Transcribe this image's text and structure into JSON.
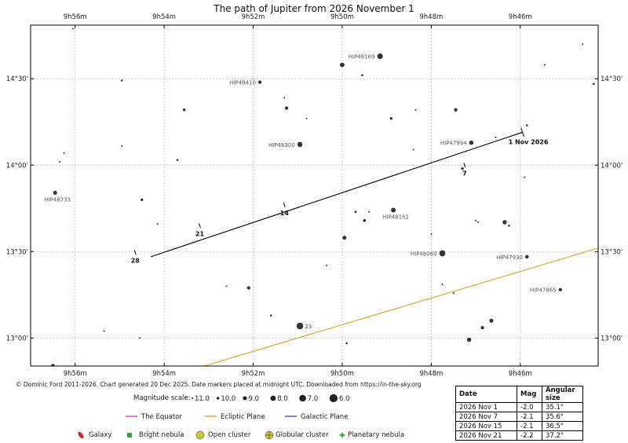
{
  "title": "The path of Jupiter from 2026 November 1",
  "credit": "© Dominic Ford 2011-2026. Chart generated 20 Dec 2025. Date markers placed at midnight UTC. Downloaded from https://in-the-sky.org",
  "chart_data": {
    "type": "scatter",
    "ra_ticks": [
      "9h56m",
      "9h54m",
      "9h52m",
      "9h50m",
      "9h48m",
      "9h46m"
    ],
    "ra_tick_minutes": [
      56,
      54,
      52,
      50,
      48,
      46
    ],
    "dec_ticks": [
      "14°30'",
      "14°00'",
      "13°30'",
      "13°00'"
    ],
    "dec_tick_degrees": [
      14.5,
      14.0,
      13.5,
      13.0
    ],
    "ra_range_minutes": [
      57.0,
      44.25
    ],
    "dec_range_degrees": [
      12.838,
      14.81
    ],
    "grid": true,
    "path": {
      "name": "Jupiter",
      "points": [
        [
          45.95,
          14.19
        ],
        [
          49.55,
          13.97
        ],
        [
          51.6,
          13.72
        ],
        [
          53.0,
          13.55
        ],
        [
          54.3,
          13.47
        ]
      ],
      "markers": [
        {
          "label": "1 Nov 2026",
          "ra": 45.95,
          "dec": 14.19
        },
        {
          "label": "7",
          "ra": 47.25,
          "dec": 14.0
        },
        {
          "label": "14",
          "ra": 51.3,
          "dec": 13.77
        },
        {
          "label": "21",
          "ra": 53.2,
          "dec": 13.65
        },
        {
          "label": "28",
          "ra": 54.65,
          "dec": 13.495
        }
      ]
    },
    "ecliptic": {
      "name": "Ecliptic Plane",
      "points": [
        [
          53.1,
          12.838
        ],
        [
          44.25,
          13.52
        ]
      ]
    },
    "stars": [
      {
        "ra": 56.05,
        "dec": 14.79,
        "mag": 11.0
      },
      {
        "ra": 54.95,
        "dec": 14.49,
        "mag": 10.5
      },
      {
        "ra": 51.85,
        "dec": 14.48,
        "mag": 9.5,
        "label": "HIP48410"
      },
      {
        "ra": 49.15,
        "dec": 14.63,
        "mag": 7.8,
        "label": "HIP48169"
      },
      {
        "ra": 50.0,
        "dec": 14.58,
        "mag": 8.6
      },
      {
        "ra": 49.55,
        "dec": 14.52,
        "mag": 10.5
      },
      {
        "ra": 45.45,
        "dec": 14.58,
        "mag": 11.0
      },
      {
        "ra": 44.6,
        "dec": 14.7,
        "mag": 11.0
      },
      {
        "ra": 44.35,
        "dec": 14.47,
        "mag": 10.5
      },
      {
        "ra": 51.3,
        "dec": 14.39,
        "mag": 11.0
      },
      {
        "ra": 53.55,
        "dec": 14.32,
        "mag": 10.0
      },
      {
        "ra": 51.25,
        "dec": 14.33,
        "mag": 9.5
      },
      {
        "ra": 50.8,
        "dec": 14.27,
        "mag": 10.8
      },
      {
        "ra": 48.9,
        "dec": 14.27,
        "mag": 10.0
      },
      {
        "ra": 48.35,
        "dec": 14.32,
        "mag": 11.0
      },
      {
        "ra": 47.45,
        "dec": 14.32,
        "mag": 9.5
      },
      {
        "ra": 45.85,
        "dec": 14.23,
        "mag": 10.5
      },
      {
        "ra": 46.55,
        "dec": 14.16,
        "mag": 11.0
      },
      {
        "ra": 50.95,
        "dec": 14.12,
        "mag": 8.2,
        "label": "HIP48300"
      },
      {
        "ra": 47.1,
        "dec": 14.13,
        "mag": 8.8,
        "label": "HIP47994"
      },
      {
        "ra": 48.4,
        "dec": 14.09,
        "mag": 11.0
      },
      {
        "ra": 54.95,
        "dec": 14.11,
        "mag": 11.0
      },
      {
        "ra": 56.25,
        "dec": 14.07,
        "mag": 11.0
      },
      {
        "ra": 56.35,
        "dec": 14.02,
        "mag": 11.0
      },
      {
        "ra": 53.7,
        "dec": 14.03,
        "mag": 10.5
      },
      {
        "ra": 47.3,
        "dec": 13.98,
        "mag": 10.0
      },
      {
        "ra": 45.9,
        "dec": 13.93,
        "mag": 11.0
      },
      {
        "ra": 56.45,
        "dec": 13.84,
        "mag": 9.0,
        "label": "HIP48733"
      },
      {
        "ra": 54.5,
        "dec": 13.8,
        "mag": 10.0
      },
      {
        "ra": 49.7,
        "dec": 13.73,
        "mag": 10.3
      },
      {
        "ra": 49.4,
        "dec": 13.73,
        "mag": 11.0
      },
      {
        "ra": 48.85,
        "dec": 13.74,
        "mag": 8.5,
        "label": "HIP48152"
      },
      {
        "ra": 49.5,
        "dec": 13.68,
        "mag": 9.8
      },
      {
        "ra": 47.0,
        "dec": 13.68,
        "mag": 11.0
      },
      {
        "ra": 46.95,
        "dec": 13.67,
        "mag": 11.0
      },
      {
        "ra": 46.35,
        "dec": 13.67,
        "mag": 8.8
      },
      {
        "ra": 46.25,
        "dec": 13.65,
        "mag": 10.5
      },
      {
        "ra": 54.15,
        "dec": 13.66,
        "mag": 11.0
      },
      {
        "ra": 48.0,
        "dec": 13.6,
        "mag": 11.0
      },
      {
        "ra": 49.95,
        "dec": 13.58,
        "mag": 9.0
      },
      {
        "ra": 47.75,
        "dec": 13.49,
        "mag": 7.5,
        "label": "HIP48060"
      },
      {
        "ra": 45.85,
        "dec": 13.47,
        "mag": 9.3,
        "label": "HIP47930"
      },
      {
        "ra": 50.35,
        "dec": 13.42,
        "mag": 11.0
      },
      {
        "ra": 47.75,
        "dec": 13.31,
        "mag": 11.0
      },
      {
        "ra": 47.5,
        "dec": 13.26,
        "mag": 11.0
      },
      {
        "ra": 52.1,
        "dec": 13.29,
        "mag": 9.5
      },
      {
        "ra": 52.6,
        "dec": 13.3,
        "mag": 11.0
      },
      {
        "ra": 45.1,
        "dec": 13.28,
        "mag": 9.5,
        "label": "HIP47865"
      },
      {
        "ra": 51.6,
        "dec": 13.13,
        "mag": 10.5
      },
      {
        "ra": 50.95,
        "dec": 13.07,
        "mag": 7.0,
        "label": "23"
      },
      {
        "ra": 46.65,
        "dec": 13.1,
        "mag": 9.0
      },
      {
        "ra": 46.85,
        "dec": 13.06,
        "mag": 9.5
      },
      {
        "ra": 47.15,
        "dec": 12.99,
        "mag": 8.8
      },
      {
        "ra": 55.35,
        "dec": 13.04,
        "mag": 11.0
      },
      {
        "ra": 54.55,
        "dec": 13.0,
        "mag": 11.0
      },
      {
        "ra": 49.9,
        "dec": 12.97,
        "mag": 10.5
      },
      {
        "ra": 56.5,
        "dec": 12.84,
        "mag": 9.3
      }
    ]
  },
  "legend": {
    "magnitude_label": "Magnitude scale:",
    "magnitudes": [
      "11.0",
      "10.0",
      "9.0",
      "8.0",
      "7.0",
      "6.0"
    ],
    "lines": [
      {
        "label": "The Equator",
        "color": "#c040c0"
      },
      {
        "label": "Ecliptic Plane",
        "color": "#d4a020"
      },
      {
        "label": "Galactic Plane",
        "color": "#4040b0"
      }
    ],
    "objects": [
      {
        "label": "Galaxy",
        "icon": "galaxy-icon",
        "color": "#c82828"
      },
      {
        "label": "Bright nebula",
        "icon": "bright-nebula-icon",
        "color": "#40a040"
      },
      {
        "label": "Open cluster",
        "icon": "open-cluster-icon",
        "color": "#c8c830"
      },
      {
        "label": "Globular cluster",
        "icon": "globular-cluster-icon",
        "color": "#c8c830"
      },
      {
        "label": "Planetary nebula",
        "icon": "planetary-nebula-icon",
        "color": "#40a040"
      }
    ]
  },
  "ephemeris": {
    "headers": [
      "Date",
      "Mag",
      "Angular size"
    ],
    "rows": [
      [
        "2026 Nov 1",
        "-2.0",
        "35.1\""
      ],
      [
        "2026 Nov 7",
        "-2.1",
        "35.6\""
      ],
      [
        "2026 Nov 15",
        "-2.1",
        "36.5\""
      ],
      [
        "2026 Nov 21",
        "-2.2",
        "37.2\""
      ]
    ]
  }
}
